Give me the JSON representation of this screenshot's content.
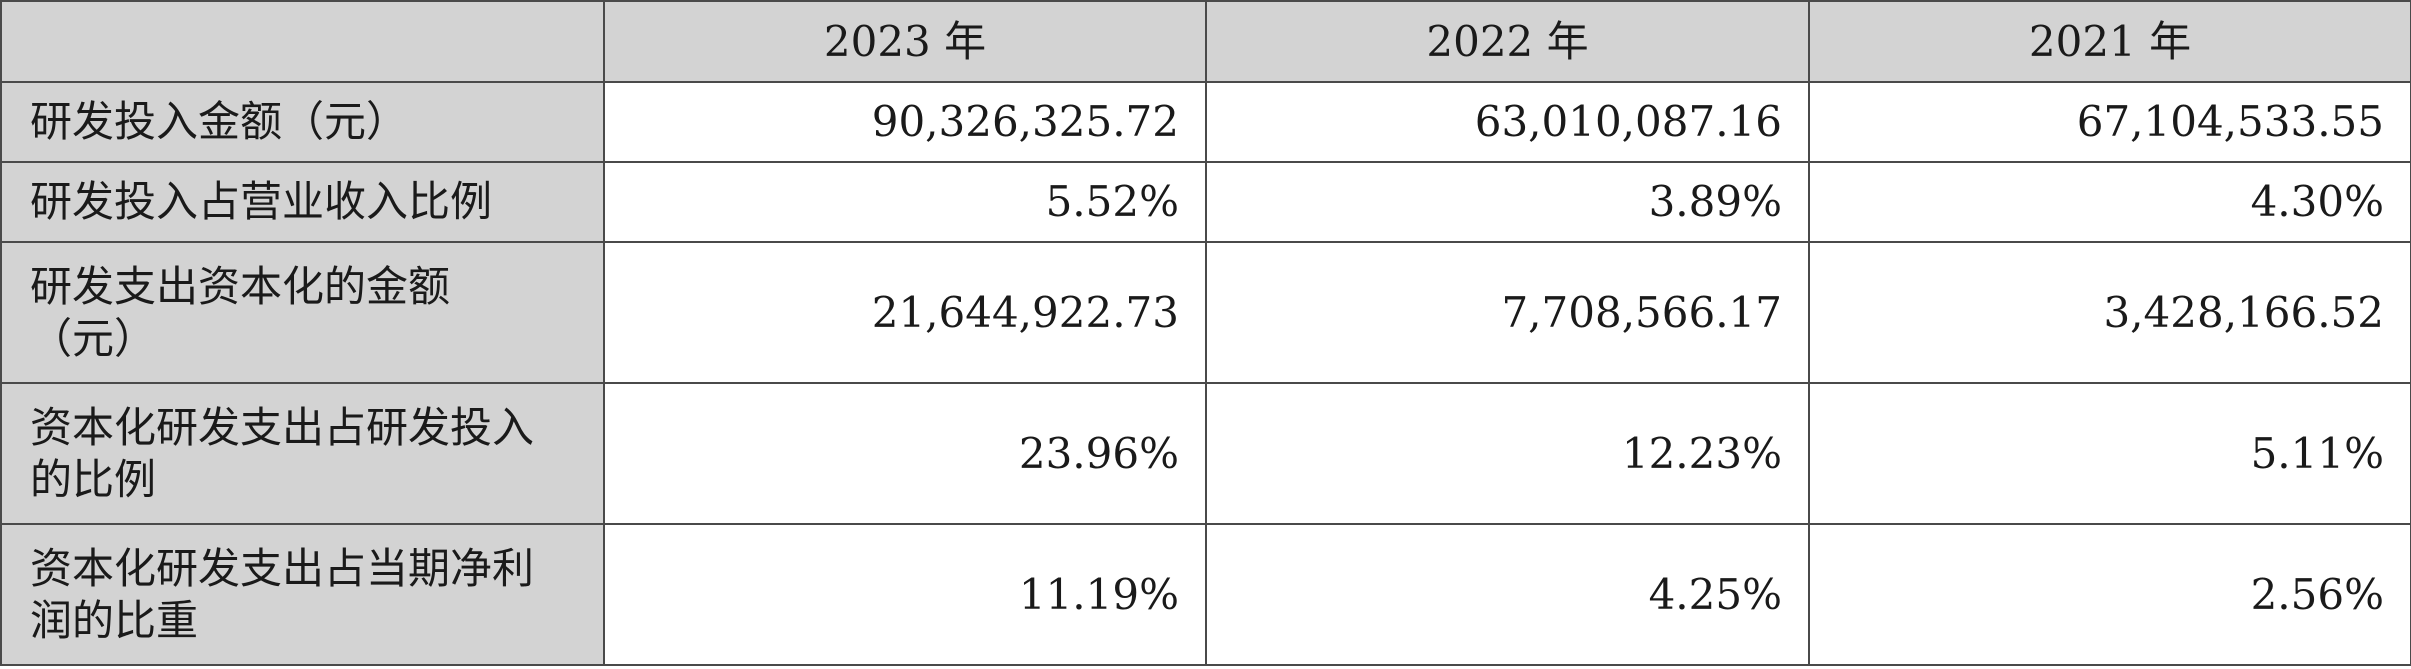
{
  "table": {
    "header": [
      "2023 年",
      "2022 年",
      "2021 年"
    ],
    "rows": [
      {
        "label": [
          "研发投入金额（元）"
        ],
        "values": [
          "90,326,325.72",
          "63,010,087.16",
          "67,104,533.55"
        ]
      },
      {
        "label": [
          "研发投入占营业收入比例"
        ],
        "values": [
          "5.52%",
          "3.89%",
          "4.30%"
        ]
      },
      {
        "label": [
          "研发支出资本化的金额",
          "（元）"
        ],
        "values": [
          "21,644,922.73",
          "7,708,566.17",
          "3,428,166.52"
        ]
      },
      {
        "label": [
          "资本化研发支出占研发投入",
          "的比例"
        ],
        "values": [
          "23.96%",
          "12.23%",
          "5.11%"
        ]
      },
      {
        "label": [
          "资本化研发支出占当期净利",
          "润的比重"
        ],
        "values": [
          "11.19%",
          "4.25%",
          "2.56%"
        ]
      }
    ]
  }
}
